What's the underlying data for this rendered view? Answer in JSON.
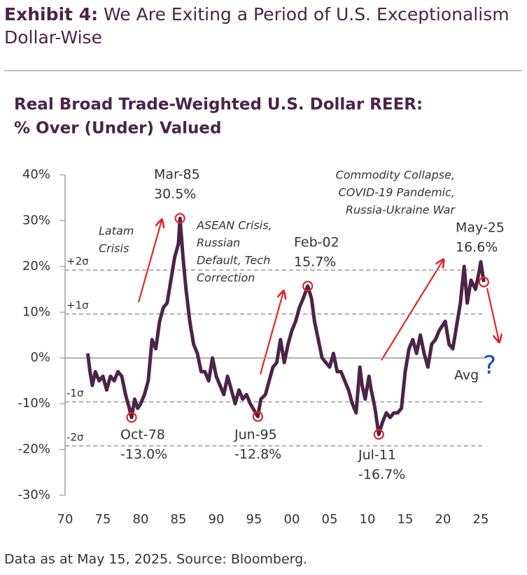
{
  "header": {
    "exhibit": "Exhibit 4:",
    "title": "We Are Exiting a Period of U.S. Exceptionalism Dollar-Wise"
  },
  "chart_data": {
    "type": "line",
    "title": [
      "Real Broad Trade-Weighted U.S. Dollar REER:",
      "% Over (Under) Valued"
    ],
    "x": [
      1973.0,
      1973.3,
      1973.6,
      1974.0,
      1974.5,
      1975.0,
      1975.5,
      1976.0,
      1976.5,
      1977.0,
      1977.5,
      1978.0,
      1978.5,
      1978.8,
      1979.2,
      1979.6,
      1980.0,
      1980.5,
      1981.0,
      1981.5,
      1982.0,
      1982.5,
      1983.0,
      1983.5,
      1984.0,
      1984.5,
      1985.0,
      1985.2,
      1985.6,
      1986.0,
      1986.5,
      1987.0,
      1987.5,
      1988.0,
      1988.5,
      1989.0,
      1989.5,
      1990.0,
      1990.5,
      1991.0,
      1991.5,
      1992.0,
      1992.5,
      1993.0,
      1993.5,
      1994.0,
      1994.5,
      1995.5,
      1995.9,
      1996.5,
      1997.0,
      1997.5,
      1998.0,
      1998.5,
      1999.0,
      1999.5,
      2000.0,
      2000.5,
      2001.0,
      2001.5,
      2002.1,
      2002.6,
      2003.0,
      2003.5,
      2004.0,
      2004.5,
      2005.0,
      2005.5,
      2006.0,
      2006.5,
      2007.0,
      2007.5,
      2008.0,
      2008.5,
      2009.0,
      2009.3,
      2009.7,
      2010.2,
      2010.5,
      2011.0,
      2011.5,
      2012.0,
      2012.5,
      2013.0,
      2013.5,
      2014.0,
      2014.5,
      2015.0,
      2015.5,
      2016.0,
      2016.5,
      2017.0,
      2017.5,
      2018.0,
      2018.5,
      2019.0,
      2019.5,
      2020.3,
      2020.8,
      2021.3,
      2021.8,
      2022.3,
      2022.8,
      2023.2,
      2023.7,
      2024.3,
      2024.8,
      2025.0,
      2025.4
    ],
    "series": [
      {
        "name": "REER over (under) valuation",
        "color": "#4b2447",
        "values": [
          1,
          -3,
          -6,
          -3,
          -5,
          -4,
          -7,
          -4,
          -5,
          -3,
          -4,
          -8,
          -11,
          -13,
          -9,
          -11,
          -10,
          -8,
          -5,
          4,
          2,
          8,
          11,
          12,
          17,
          22,
          25,
          30.5,
          22,
          15,
          8,
          3,
          1,
          -3,
          -3,
          -5,
          0,
          -4,
          -6,
          -8,
          -4,
          -7,
          -10,
          -7,
          -9,
          -8,
          -10,
          -12.8,
          -9,
          -8,
          -5,
          -2,
          -1,
          4,
          -1,
          3,
          6,
          8,
          11,
          13,
          15.7,
          13,
          8,
          4,
          0,
          -1,
          -2,
          1,
          -3,
          -3,
          -5,
          -7,
          -10,
          -12,
          -2,
          -6,
          -9,
          -4,
          -7,
          -11,
          -16.7,
          -14,
          -12,
          -13,
          -12,
          -12,
          -11,
          -3,
          2,
          4,
          1,
          5,
          1,
          -2,
          3,
          4,
          6,
          8,
          3,
          2,
          7,
          12,
          20,
          12,
          17,
          15,
          19,
          21,
          16.6
        ]
      }
    ],
    "xlim": [
      1970,
      2028
    ],
    "xticks": [
      {
        "value": 1970,
        "label": "70"
      },
      {
        "value": 1975,
        "label": "75"
      },
      {
        "value": 1980,
        "label": "80"
      },
      {
        "value": 1985,
        "label": "85"
      },
      {
        "value": 1990,
        "label": "90"
      },
      {
        "value": 1995,
        "label": "95"
      },
      {
        "value": 2000,
        "label": "00"
      },
      {
        "value": 2005,
        "label": "05"
      },
      {
        "value": 2010,
        "label": "10"
      },
      {
        "value": 2015,
        "label": "15"
      },
      {
        "value": 2020,
        "label": "20"
      },
      {
        "value": 2025,
        "label": "25"
      }
    ],
    "ylim": [
      -30,
      40
    ],
    "yticks": [
      {
        "value": 40,
        "label": "40%"
      },
      {
        "value": 30,
        "label": "30%"
      },
      {
        "value": 20,
        "label": "20%"
      },
      {
        "value": 10,
        "label": "10%"
      },
      {
        "value": 0,
        "label": "0%"
      },
      {
        "value": -10,
        "label": "-10%"
      },
      {
        "value": -20,
        "label": "-20%"
      },
      {
        "value": -30,
        "label": "-30%"
      }
    ],
    "bands": [
      {
        "label": "+2σ",
        "value": 19.2
      },
      {
        "label": "+1σ",
        "value": 9.6
      },
      {
        "label": "-1σ",
        "value": -9.6
      },
      {
        "label": "-2σ",
        "value": -19.2
      }
    ],
    "highlights": [
      {
        "text": "Oct-78",
        "x": 1978.8,
        "value": -13.0,
        "value_label": "-13.0%"
      },
      {
        "text": "Mar-85",
        "x": 1985.2,
        "value": 30.5,
        "value_label": "30.5%"
      },
      {
        "text": "Jun-95",
        "x": 1995.5,
        "value": -12.8,
        "value_label": "-12.8%"
      },
      {
        "text": "Feb-02",
        "x": 2002.1,
        "value": 15.7,
        "value_label": "15.7%"
      },
      {
        "text": "Jul-11",
        "x": 2011.5,
        "value": -16.7,
        "value_label": "-16.7%"
      },
      {
        "text": "May-25",
        "x": 2025.4,
        "value": 16.6,
        "value_label": "16.6%"
      }
    ],
    "notes": [
      [
        "Latam",
        "Crisis"
      ],
      [
        "ASEAN Crisis,",
        "Russian",
        "Default, Tech",
        "Correction"
      ],
      [
        "Commodity Collapse,",
        "COVID-19 Pandemic,",
        "Russia-Ukraine War"
      ]
    ],
    "avg_label": "Avg",
    "avg_mark": "?"
  },
  "footer": "Data as at May 15, 2025. Source: Bloomberg."
}
